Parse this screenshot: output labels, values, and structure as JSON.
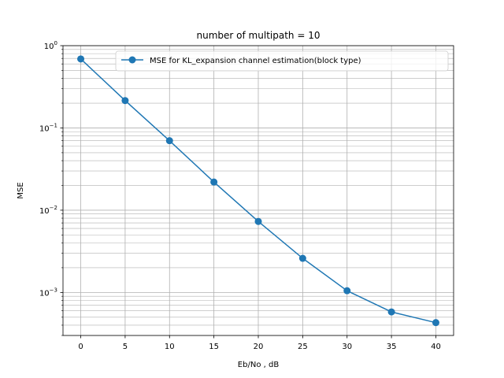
{
  "chart_data": {
    "type": "line",
    "title": "number of multipath = 10",
    "xlabel": "Eb/No , dB",
    "ylabel": "MSE",
    "yscale": "log",
    "xlim": [
      -2,
      42
    ],
    "ylim": [
      0.0003,
      1
    ],
    "grid": true,
    "grid_minor": true,
    "legend_position": "upper-right",
    "x_ticks": [
      0,
      5,
      10,
      15,
      20,
      25,
      30,
      35,
      40
    ],
    "y_ticks": [
      {
        "value": 1,
        "base": "10",
        "exp": "0"
      },
      {
        "value": 0.1,
        "base": "10",
        "exp": "−1"
      },
      {
        "value": 0.01,
        "base": "10",
        "exp": "−2"
      },
      {
        "value": 0.001,
        "base": "10",
        "exp": "−3"
      }
    ],
    "series": [
      {
        "name": "MSE for KL_expansion channel estimation(block type)",
        "color": "#1f77b4",
        "marker": "circle",
        "x": [
          0,
          5,
          10,
          15,
          20,
          25,
          30,
          35,
          40
        ],
        "y": [
          0.69,
          0.215,
          0.07,
          0.022,
          0.0073,
          0.0026,
          0.00105,
          0.00058,
          0.00043
        ]
      }
    ]
  }
}
